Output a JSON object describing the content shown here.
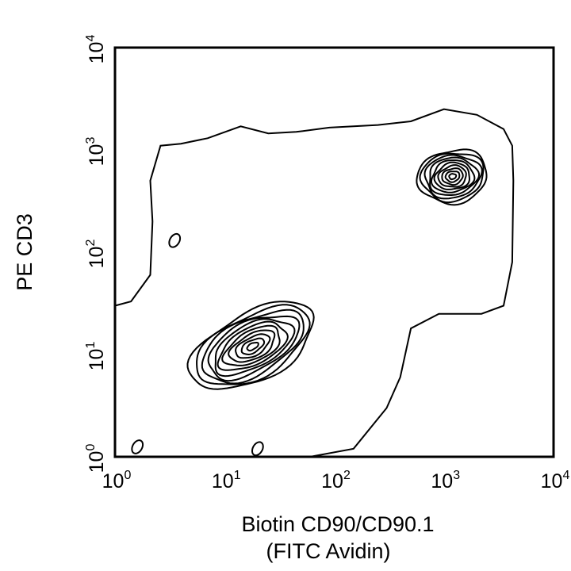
{
  "chart_data": {
    "type": "contour",
    "xlabel_line1": "Biotin CD90/CD90.1",
    "xlabel_line2": "(FITC Avidin)",
    "ylabel": "PE CD3",
    "x_scale": "log",
    "y_scale": "log",
    "xlim": [
      1,
      10000
    ],
    "ylim": [
      1,
      10000
    ],
    "x_ticks": [
      {
        "value": 1,
        "base": "10",
        "exp": "0"
      },
      {
        "value": 10,
        "base": "10",
        "exp": "1"
      },
      {
        "value": 100,
        "base": "10",
        "exp": "2"
      },
      {
        "value": 1000,
        "base": "10",
        "exp": "3"
      },
      {
        "value": 10000,
        "base": "10",
        "exp": "4"
      }
    ],
    "y_ticks": [
      {
        "value": 1,
        "base": "10",
        "exp": "0"
      },
      {
        "value": 10,
        "base": "10",
        "exp": "1"
      },
      {
        "value": 100,
        "base": "10",
        "exp": "2"
      },
      {
        "value": 1000,
        "base": "10",
        "exp": "3"
      },
      {
        "value": 10000,
        "base": "10",
        "exp": "4"
      }
    ],
    "populations": [
      {
        "name": "",
        "center_x": 18,
        "center_y": 12,
        "spread_x_decades": 0.62,
        "spread_y_decades": 0.33,
        "tilt_deg": 28,
        "levels": 11
      },
      {
        "name": "",
        "center_x": 1200,
        "center_y": 550,
        "spread_x_decades": 0.32,
        "spread_y_decades": 0.26,
        "tilt_deg": 10,
        "levels": 10
      }
    ],
    "outer_envelope": [
      [
        1,
        30
      ],
      [
        1.4,
        33
      ],
      [
        2.1,
        60
      ],
      [
        2.2,
        200
      ],
      [
        2.1,
        500
      ],
      [
        2.6,
        1100
      ],
      [
        4,
        1150
      ],
      [
        7,
        1300
      ],
      [
        14,
        1700
      ],
      [
        25,
        1450
      ],
      [
        45,
        1500
      ],
      [
        90,
        1650
      ],
      [
        250,
        1750
      ],
      [
        500,
        1900
      ],
      [
        1000,
        2500
      ],
      [
        2000,
        2200
      ],
      [
        3500,
        1600
      ],
      [
        4200,
        1100
      ],
      [
        4300,
        500
      ],
      [
        4200,
        80
      ],
      [
        3500,
        30
      ],
      [
        2200,
        25
      ],
      [
        900,
        25
      ],
      [
        500,
        18
      ],
      [
        400,
        6
      ],
      [
        300,
        3
      ],
      [
        150,
        1.2
      ],
      [
        60,
        1
      ],
      [
        5,
        1
      ],
      [
        1,
        1
      ]
    ],
    "outliers": [
      {
        "x": 3.5,
        "y": 130
      },
      {
        "x": 1.6,
        "y": 1.25
      },
      {
        "x": 20,
        "y": 1.2
      }
    ]
  },
  "colors": {
    "line": "#000000",
    "background": "#ffffff"
  }
}
